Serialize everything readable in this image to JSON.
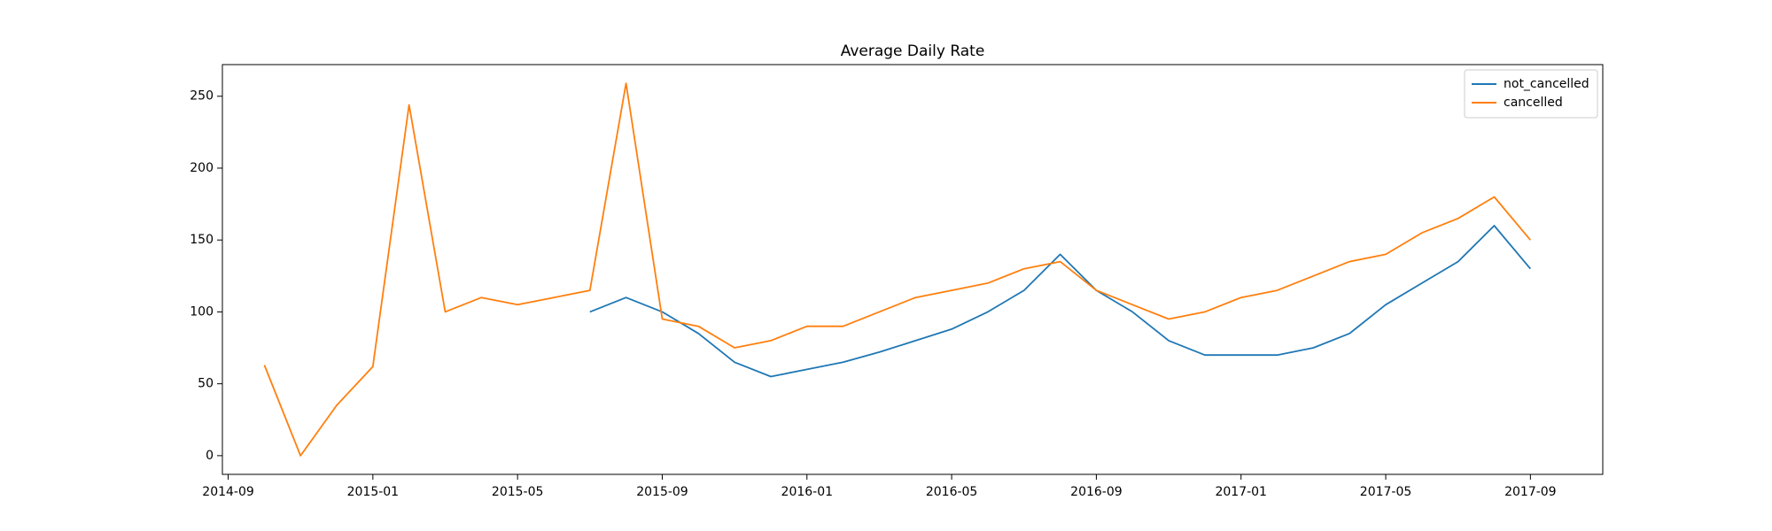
{
  "chart_data": {
    "type": "line",
    "title": "Average Daily Rate",
    "x": [
      "2014-10",
      "2014-11",
      "2014-12",
      "2015-01",
      "2015-02",
      "2015-03",
      "2015-04",
      "2015-05",
      "2015-06",
      "2015-07",
      "2015-08",
      "2015-09",
      "2015-10",
      "2015-11",
      "2015-12",
      "2016-01",
      "2016-02",
      "2016-03",
      "2016-04",
      "2016-05",
      "2016-06",
      "2016-07",
      "2016-08",
      "2016-09",
      "2016-10",
      "2016-11",
      "2016-12",
      "2017-01",
      "2017-02",
      "2017-03",
      "2017-04",
      "2017-05",
      "2017-06",
      "2017-07",
      "2017-08",
      "2017-09"
    ],
    "series": [
      {
        "name": "not_cancelled",
        "color": "#1f77b4",
        "values": [
          null,
          null,
          null,
          null,
          null,
          null,
          null,
          null,
          null,
          100,
          110,
          100,
          85,
          65,
          55,
          60,
          65,
          72,
          80,
          88,
          100,
          115,
          140,
          115,
          100,
          80,
          70,
          70,
          70,
          75,
          85,
          105,
          120,
          135,
          160,
          130
        ]
      },
      {
        "name": "cancelled",
        "color": "#ff7f0e",
        "values": [
          63,
          0,
          35,
          62,
          244,
          100,
          110,
          105,
          110,
          115,
          259,
          95,
          90,
          75,
          80,
          90,
          90,
          100,
          110,
          115,
          120,
          130,
          135,
          115,
          105,
          95,
          100,
          110,
          115,
          125,
          135,
          140,
          155,
          165,
          180,
          150
        ]
      }
    ],
    "xlim": [
      "2014-09",
      "2017-11"
    ],
    "xticks": [
      "2014-09",
      "2015-01",
      "2015-05",
      "2015-09",
      "2016-01",
      "2016-05",
      "2016-09",
      "2017-01",
      "2017-05",
      "2017-09"
    ],
    "ylim": [
      -13,
      272
    ],
    "yticks": [
      0,
      50,
      100,
      150,
      200,
      250
    ],
    "grid": false,
    "legend": "upper right"
  }
}
